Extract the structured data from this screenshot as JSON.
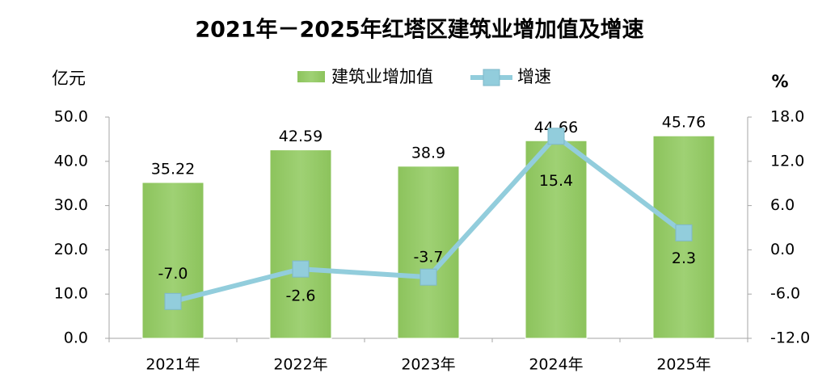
{
  "chart_data": {
    "type": "bar+line",
    "title": "2021年－2025年红塔区建筑业增加值及增速",
    "y_label": "亿元",
    "y2_label": "%",
    "categories": [
      "2021年",
      "2022年",
      "2023年",
      "2024年",
      "2025年"
    ],
    "series": [
      {
        "name": "建筑业增加值",
        "type": "bar",
        "color": "#92c966",
        "values": [
          35.22,
          42.59,
          38.9,
          44.66,
          45.76
        ]
      },
      {
        "name": "增速",
        "type": "line",
        "axis": "y2",
        "color": "#92cddc",
        "values": [
          -7.0,
          -2.6,
          -3.7,
          15.4,
          2.3
        ],
        "value_labels": [
          "-7.0",
          "-2.6",
          "-3.7",
          "15.4",
          "2.3"
        ]
      }
    ],
    "ylim": [
      0,
      50
    ],
    "yticks": [
      {
        "value": 0,
        "label": "0.0"
      },
      {
        "value": 10,
        "label": "10.0"
      },
      {
        "value": 20,
        "label": "20.0"
      },
      {
        "value": 30,
        "label": "30.0"
      },
      {
        "value": 40,
        "label": "40.0"
      },
      {
        "value": 50,
        "label": "50.0"
      }
    ],
    "y2lim": [
      -12,
      18
    ],
    "y2ticks": [
      {
        "value": -12,
        "label": "-12.0"
      },
      {
        "value": -6,
        "label": "-6.0"
      },
      {
        "value": 0,
        "label": "0.0"
      },
      {
        "value": 6,
        "label": "6.0"
      },
      {
        "value": 12,
        "label": "12.0"
      },
      {
        "value": 18,
        "label": "18.0"
      }
    ],
    "legend": "top"
  }
}
